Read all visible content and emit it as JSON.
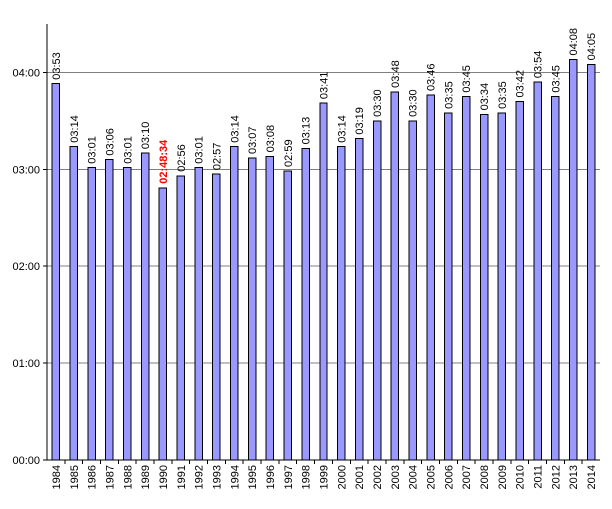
{
  "chart_data": {
    "type": "bar",
    "title": "",
    "xlabel": "",
    "ylabel": "",
    "ylim": [
      0,
      270
    ],
    "ylim_units": "minutes",
    "yticks": [
      {
        "label": "00:00",
        "value": 0
      },
      {
        "label": "01:00",
        "value": 60
      },
      {
        "label": "02:00",
        "value": 120
      },
      {
        "label": "03:00",
        "value": 180
      },
      {
        "label": "04:00",
        "value": 240
      }
    ],
    "grid": true,
    "legend": "none",
    "colors": {
      "bar_fill": "#9999ff",
      "bar_stroke": "#000000",
      "grid": "#808080",
      "highlight_label": "#ff0000",
      "label": "#000000"
    },
    "categories": [
      "1984",
      "1985",
      "1986",
      "1987",
      "1988",
      "1989",
      "1990",
      "1991",
      "1992",
      "1993",
      "1994",
      "1995",
      "1996",
      "1997",
      "1998",
      "1999",
      "2000",
      "2001",
      "2002",
      "2003",
      "2004",
      "2005",
      "2006",
      "2007",
      "2008",
      "2009",
      "2010",
      "2011",
      "2012",
      "2013",
      "2014"
    ],
    "labels": [
      "03:53",
      "03:14",
      "03:01",
      "03:06",
      "03:01",
      "03:10",
      "02:48:34",
      "02:56",
      "03:01",
      "02:57",
      "03:14",
      "03:07",
      "03:08",
      "02:59",
      "03:13",
      "03:41",
      "03:14",
      "03:19",
      "03:30",
      "03:48",
      "03:30",
      "03:46",
      "03:35",
      "03:45",
      "03:34",
      "03:35",
      "03:42",
      "03:54",
      "03:45",
      "04:08",
      "04:05"
    ],
    "values": [
      233,
      194,
      181,
      186,
      181,
      190,
      168.57,
      176,
      181,
      177,
      194,
      187,
      188,
      179,
      193,
      221,
      194,
      199,
      210,
      228,
      210,
      226,
      215,
      225,
      214,
      215,
      222,
      234,
      225,
      248,
      245
    ],
    "highlight_category": "1990"
  }
}
